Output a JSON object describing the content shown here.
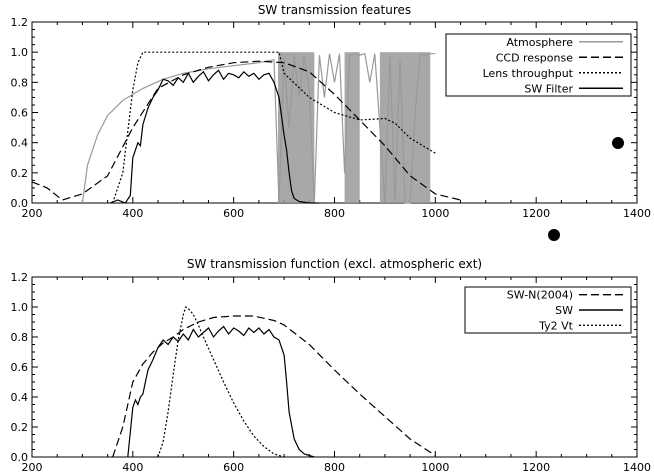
{
  "chart_data": [
    {
      "type": "line",
      "title": "SW transmission features",
      "xlabel": "",
      "ylabel": "",
      "xlim": [
        200,
        1400
      ],
      "ylim": [
        0.0,
        1.2
      ],
      "x_ticks": [
        200,
        400,
        600,
        800,
        1000,
        1200,
        1400
      ],
      "y_ticks": [
        0.0,
        0.2,
        0.4,
        0.6,
        0.8,
        1.0,
        1.2
      ],
      "x_tick_labels": [
        "200",
        "400",
        "600",
        "800",
        "1000",
        "1200",
        "1400"
      ],
      "y_tick_labels": [
        "0.0",
        "0.2",
        "0.4",
        "0.6",
        "0.8",
        "1.0",
        "1.2"
      ],
      "legend_position": "top-right",
      "series": [
        {
          "name": "Atmosphere",
          "style": "solid",
          "color": "#999999",
          "x": [
            300,
            310,
            330,
            350,
            380,
            420,
            460,
            500,
            550,
            600,
            650,
            680,
            690,
            700,
            710,
            720,
            730,
            740,
            750,
            760,
            770,
            780,
            790,
            800,
            810,
            820,
            830,
            840,
            850,
            860,
            870,
            880,
            890,
            900,
            910,
            920,
            930,
            940,
            950,
            960,
            970,
            980,
            990,
            1000
          ],
          "y": [
            0.0,
            0.25,
            0.45,
            0.58,
            0.68,
            0.76,
            0.82,
            0.86,
            0.89,
            0.91,
            0.93,
            0.95,
            0.0,
            0.97,
            0.5,
            0.98,
            0.7,
            0.98,
            0.75,
            0.0,
            0.98,
            0.7,
            0.99,
            0.8,
            0.99,
            0.2,
            0.98,
            0.99,
            0.98,
            0.99,
            0.8,
            0.99,
            0.5,
            0.0,
            0.98,
            0.0,
            0.95,
            0.0,
            0.0,
            0.6,
            0.99,
            0.98,
            0.99,
            0.99
          ],
          "band_regions": [
            [
              688,
              760
            ],
            [
              820,
              850
            ],
            [
              890,
              990
            ]
          ]
        },
        {
          "name": "CCD response",
          "style": "dashed",
          "color": "#000000",
          "x": [
            200,
            230,
            260,
            300,
            350,
            400,
            450,
            500,
            550,
            600,
            650,
            700,
            750,
            800,
            850,
            900,
            950,
            1000,
            1050
          ],
          "y": [
            0.14,
            0.1,
            0.02,
            0.06,
            0.18,
            0.5,
            0.76,
            0.85,
            0.9,
            0.93,
            0.94,
            0.93,
            0.87,
            0.72,
            0.55,
            0.38,
            0.18,
            0.06,
            0.02
          ]
        },
        {
          "name": "Lens throughput",
          "style": "dotted",
          "color": "#000000",
          "x": [
            360,
            380,
            400,
            410,
            420,
            500,
            600,
            690,
            700,
            750,
            800,
            850,
            900,
            920,
            950,
            1000
          ],
          "y": [
            0.0,
            0.2,
            0.75,
            0.93,
            1.0,
            1.0,
            1.0,
            1.0,
            0.86,
            0.7,
            0.6,
            0.55,
            0.56,
            0.53,
            0.43,
            0.33
          ]
        },
        {
          "name": "SW Filter",
          "style": "solid",
          "color": "#000000",
          "x": [
            355,
            370,
            385,
            395,
            400,
            410,
            415,
            420,
            430,
            440,
            450,
            460,
            470,
            480,
            490,
            500,
            510,
            520,
            530,
            540,
            550,
            560,
            570,
            580,
            590,
            600,
            610,
            620,
            630,
            640,
            650,
            660,
            670,
            680,
            690,
            700,
            705,
            710,
            715,
            720,
            730,
            750,
            770
          ],
          "y": [
            0.0,
            0.02,
            0.0,
            0.05,
            0.3,
            0.4,
            0.38,
            0.52,
            0.63,
            0.7,
            0.75,
            0.82,
            0.81,
            0.78,
            0.83,
            0.8,
            0.86,
            0.8,
            0.84,
            0.87,
            0.81,
            0.85,
            0.88,
            0.82,
            0.86,
            0.85,
            0.83,
            0.87,
            0.84,
            0.86,
            0.82,
            0.85,
            0.86,
            0.8,
            0.7,
            0.45,
            0.35,
            0.2,
            0.08,
            0.03,
            0.01,
            0.0,
            0.0
          ]
        }
      ]
    },
    {
      "type": "line",
      "title": "SW transmission function (excl. atmospheric ext)",
      "xlabel": "",
      "ylabel": "",
      "xlim": [
        200,
        1400
      ],
      "ylim": [
        0.0,
        1.2
      ],
      "x_ticks": [
        200,
        400,
        600,
        800,
        1000,
        1200,
        1400
      ],
      "y_ticks": [
        0.0,
        0.2,
        0.4,
        0.6,
        0.8,
        1.0,
        1.2
      ],
      "x_tick_labels": [
        "200",
        "400",
        "600",
        "800",
        "1000",
        "1200",
        "1400"
      ],
      "y_tick_labels": [
        "0.0",
        "0.2",
        "0.4",
        "0.6",
        "0.8",
        "1.0",
        "1.2"
      ],
      "legend_position": "top-right",
      "series": [
        {
          "name": "SW-N(2004)",
          "style": "dashed",
          "color": "#000000",
          "x": [
            360,
            380,
            400,
            420,
            440,
            460,
            480,
            500,
            530,
            560,
            600,
            640,
            680,
            700,
            750,
            800,
            850,
            900,
            950,
            1000
          ],
          "y": [
            0.0,
            0.2,
            0.5,
            0.62,
            0.7,
            0.76,
            0.8,
            0.85,
            0.9,
            0.93,
            0.94,
            0.94,
            0.91,
            0.88,
            0.75,
            0.58,
            0.42,
            0.27,
            0.12,
            0.01
          ]
        },
        {
          "name": "SW",
          "style": "solid",
          "color": "#000000",
          "x": [
            390,
            400,
            405,
            410,
            415,
            420,
            425,
            430,
            440,
            450,
            460,
            470,
            480,
            490,
            500,
            510,
            520,
            530,
            540,
            550,
            560,
            570,
            580,
            590,
            600,
            610,
            620,
            630,
            640,
            650,
            660,
            670,
            680,
            690,
            700,
            705,
            710,
            720,
            730,
            740,
            750,
            760
          ],
          "y": [
            0.0,
            0.33,
            0.38,
            0.35,
            0.4,
            0.42,
            0.5,
            0.58,
            0.65,
            0.73,
            0.78,
            0.75,
            0.8,
            0.77,
            0.82,
            0.78,
            0.85,
            0.8,
            0.83,
            0.86,
            0.8,
            0.84,
            0.87,
            0.82,
            0.86,
            0.84,
            0.81,
            0.86,
            0.83,
            0.86,
            0.82,
            0.85,
            0.8,
            0.78,
            0.68,
            0.5,
            0.3,
            0.12,
            0.05,
            0.02,
            0.01,
            0.0
          ]
        },
        {
          "name": "Ty2 Vt",
          "style": "dotted",
          "color": "#000000",
          "x": [
            450,
            460,
            470,
            480,
            490,
            500,
            505,
            510,
            520,
            530,
            540,
            560,
            580,
            600,
            620,
            640,
            660,
            680,
            700
          ],
          "y": [
            0.0,
            0.1,
            0.3,
            0.55,
            0.78,
            0.95,
            1.0,
            0.99,
            0.95,
            0.88,
            0.8,
            0.65,
            0.5,
            0.36,
            0.24,
            0.14,
            0.07,
            0.02,
            0.0
          ]
        }
      ]
    }
  ]
}
